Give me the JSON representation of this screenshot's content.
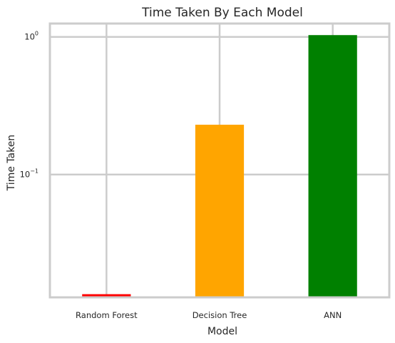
{
  "chart_data": {
    "type": "bar",
    "title": "Time Taken By Each Model",
    "xlabel": "Model",
    "ylabel": "Time Taken",
    "categories": [
      "Random Forest",
      "Decision Tree",
      "ANN"
    ],
    "values": [
      0.0135,
      0.23,
      1.03
    ],
    "colors": [
      "#ff0000",
      "#ffa500",
      "#008000"
    ],
    "yscale": "log",
    "ylim": [
      0.0128,
      1.25
    ],
    "yticks": [
      {
        "value": 1,
        "base": "10",
        "exp": "0"
      },
      {
        "value": 0.1,
        "base": "10",
        "exp": "−1"
      }
    ],
    "grid": true
  }
}
